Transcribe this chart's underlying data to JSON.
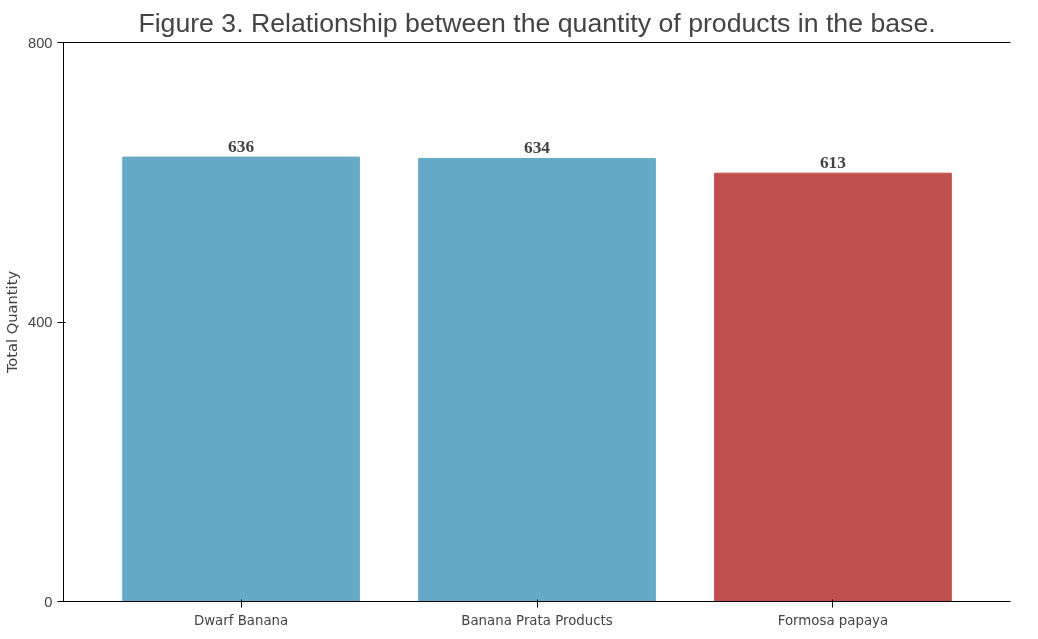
{
  "chart_data": {
    "type": "bar",
    "title": "Figure 3. Relationship between the quantity of products in the base.",
    "ylabel": "Total Quantity",
    "categories": [
      "Dwarf Banana",
      "Banana Prata Products",
      "Formosa papaya"
    ],
    "values": [
      636,
      634,
      613
    ],
    "colors": [
      "#66aac7",
      "#66aac7",
      "#c0504d"
    ],
    "ylim": [
      0,
      800
    ],
    "yticks": [
      0,
      400,
      800
    ],
    "data_labels": true,
    "grid": false
  }
}
